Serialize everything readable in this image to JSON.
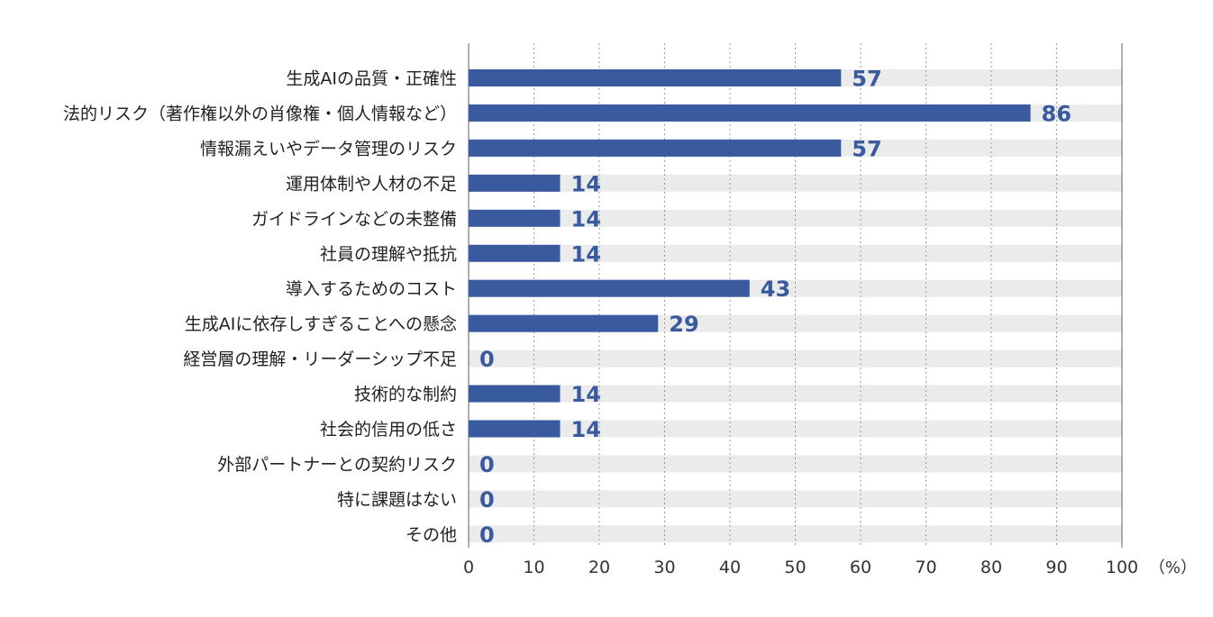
{
  "chart_data": {
    "type": "bar",
    "orientation": "horizontal",
    "categories": [
      "生成AIの品質・正確性",
      "法的リスク（著作権以外の肖像権・個人情報など）",
      "情報漏えいやデータ管理のリスク",
      "運用体制や人材の不足",
      "ガイドラインなどの未整備",
      "社員の理解や抵抗",
      "導入するためのコスト",
      "生成AIに依存しすぎることへの懸念",
      "経営層の理解・リーダーシップ不足",
      "技術的な制約",
      "社会的信用の低さ",
      "外部パートナーとの契約リスク",
      "特に課題はない",
      "その他"
    ],
    "values": [
      57,
      86,
      57,
      14,
      14,
      14,
      43,
      29,
      0,
      14,
      14,
      0,
      0,
      0
    ],
    "xlim": [
      0,
      100
    ],
    "xticks": [
      "0",
      "10",
      "20",
      "30",
      "40",
      "50",
      "60",
      "70",
      "80",
      "90",
      "100"
    ],
    "unit": "（%）",
    "grid": "vertical-dotted",
    "colors": {
      "bar": "#3a5aa0",
      "track": "#ebebeb",
      "value_label": "#3a5aa0",
      "grid": "#9a9a9a"
    }
  }
}
